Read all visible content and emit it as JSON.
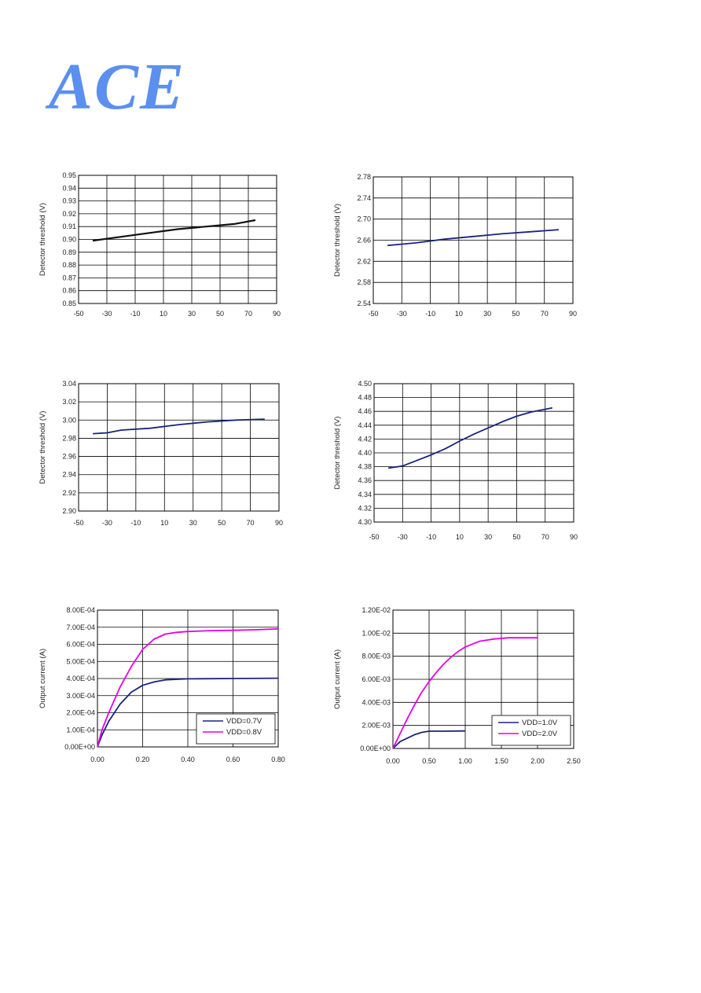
{
  "logo": {
    "text": "ACE"
  },
  "chart_data": [
    {
      "type": "line",
      "ylabel": "Detector threshold (V)",
      "xlabel": "",
      "xlim": [
        -50,
        90
      ],
      "ylim": [
        0.85,
        0.95
      ],
      "xticks": [
        "-50",
        "-30",
        "-10",
        "10",
        "30",
        "50",
        "70",
        "90"
      ],
      "yticks": [
        "0.85",
        "0.86",
        "0.87",
        "0.88",
        "0.89",
        "0.90",
        "0.91",
        "0.92",
        "0.93",
        "0.94",
        "0.95"
      ],
      "grid": true,
      "series": [
        {
          "color": "#111111",
          "x": [
            -40,
            -20,
            0,
            20,
            40,
            60,
            75
          ],
          "y": [
            0.899,
            0.902,
            0.905,
            0.908,
            0.91,
            0.912,
            0.915
          ]
        }
      ]
    },
    {
      "type": "line",
      "ylabel": "Detector threshold (V)",
      "xlabel": "",
      "xlim": [
        -50,
        90
      ],
      "ylim": [
        2.54,
        2.78
      ],
      "xticks": [
        "-50",
        "-30",
        "-10",
        "10",
        "30",
        "50",
        "70",
        "90"
      ],
      "yticks": [
        "2.54",
        "2.58",
        "2.62",
        "2.66",
        "2.70",
        "2.74",
        "2.78"
      ],
      "grid": true,
      "series": [
        {
          "color": "#1a237e",
          "x": [
            -40,
            -20,
            0,
            20,
            40,
            60,
            80
          ],
          "y": [
            2.65,
            2.655,
            2.662,
            2.667,
            2.672,
            2.676,
            2.68
          ]
        }
      ]
    },
    {
      "type": "line",
      "ylabel": "Detector threshold (V)",
      "xlabel": "",
      "xlim": [
        -50,
        90
      ],
      "ylim": [
        2.9,
        3.04
      ],
      "xticks": [
        "-50",
        "-30",
        "-10",
        "10",
        "30",
        "50",
        "70",
        "90"
      ],
      "yticks": [
        "2.90",
        "2.92",
        "2.94",
        "2.96",
        "2.98",
        "3.00",
        "3.02",
        "3.04"
      ],
      "grid": true,
      "series": [
        {
          "color": "#1a237e",
          "x": [
            -40,
            -30,
            -20,
            0,
            20,
            40,
            60,
            80
          ],
          "y": [
            2.985,
            2.986,
            2.989,
            2.991,
            2.995,
            2.998,
            3.0,
            3.001
          ]
        }
      ]
    },
    {
      "type": "line",
      "ylabel": "Detector threshold (V)",
      "xlabel": "",
      "xlim": [
        -50,
        90
      ],
      "ylim": [
        4.3,
        4.5
      ],
      "xticks": [
        "-50",
        "-30",
        "-10",
        "10",
        "30",
        "50",
        "70",
        "90"
      ],
      "yticks": [
        "4.30",
        "4.32",
        "4.34",
        "4.36",
        "4.38",
        "4.40",
        "4.42",
        "4.44",
        "4.46",
        "4.48",
        "4.50"
      ],
      "grid": true,
      "series": [
        {
          "color": "#1a237e",
          "x": [
            -40,
            -30,
            -20,
            -10,
            0,
            10,
            20,
            30,
            40,
            50,
            60,
            75
          ],
          "y": [
            4.378,
            4.381,
            4.389,
            4.397,
            4.406,
            4.417,
            4.427,
            4.436,
            4.445,
            4.453,
            4.459,
            4.465
          ]
        }
      ]
    },
    {
      "type": "line",
      "ylabel": "Output current  (A)",
      "xlabel": "",
      "xlim": [
        0,
        0.8
      ],
      "ylim": [
        0,
        0.0008
      ],
      "xticks": [
        "0.00",
        "0.20",
        "0.40",
        "0.60",
        "0.80"
      ],
      "yticks": [
        "0.00E+00",
        "1.00E-04",
        "2.00E-04",
        "3.00E-04",
        "4.00E-04",
        "5.00E-04",
        "6.00E-04",
        "7.00E-04",
        "8.00E-04"
      ],
      "grid": true,
      "legend_position": "bottom-right",
      "series": [
        {
          "name": "VDD=0.7V",
          "color": "#1a237e",
          "x": [
            0,
            0.02,
            0.05,
            0.1,
            0.15,
            0.2,
            0.25,
            0.3,
            0.4,
            0.6,
            0.8
          ],
          "y": [
            0,
            7e-05,
            0.00015,
            0.00025,
            0.00032,
            0.00036,
            0.00038,
            0.000392,
            0.000398,
            0.0004,
            0.000402
          ]
        },
        {
          "name": "VDD=0.8V",
          "color": "#e600e6",
          "x": [
            0,
            0.02,
            0.05,
            0.1,
            0.15,
            0.2,
            0.25,
            0.3,
            0.35,
            0.4,
            0.5,
            0.6,
            0.7,
            0.8
          ],
          "y": [
            0,
            0.0001,
            0.0002,
            0.00035,
            0.00047,
            0.00057,
            0.00063,
            0.00066,
            0.00067,
            0.000675,
            0.00068,
            0.000682,
            0.000685,
            0.00069
          ]
        }
      ]
    },
    {
      "type": "line",
      "ylabel": "Output current  (A)",
      "xlabel": "",
      "xlim": [
        0,
        2.5
      ],
      "ylim": [
        0,
        0.012
      ],
      "xticks": [
        "0.00",
        "0.50",
        "1.00",
        "1.50",
        "2.00",
        "2.50"
      ],
      "yticks": [
        "0.00E+00",
        "2.00E-03",
        "4.00E-03",
        "6.00E-03",
        "8.00E-03",
        "1.00E-02",
        "1.20E-02"
      ],
      "grid": true,
      "legend_position": "bottom-right",
      "series": [
        {
          "name": "VDD=1.0V",
          "color": "#1a237e",
          "x": [
            0,
            0.05,
            0.1,
            0.2,
            0.3,
            0.4,
            0.5,
            0.7,
            1.0
          ],
          "y": [
            0,
            0.0003,
            0.0006,
            0.0009,
            0.0012,
            0.0014,
            0.0015,
            0.0015,
            0.00152
          ]
        },
        {
          "name": "VDD=2.0V",
          "color": "#e600e6",
          "x": [
            0,
            0.1,
            0.2,
            0.3,
            0.4,
            0.5,
            0.6,
            0.7,
            0.8,
            0.9,
            1.0,
            1.2,
            1.4,
            1.6,
            2.0
          ],
          "y": [
            0,
            0.0013,
            0.0026,
            0.0038,
            0.0049,
            0.0058,
            0.0066,
            0.0073,
            0.0079,
            0.0084,
            0.0088,
            0.0093,
            0.0095,
            0.0096,
            0.0096
          ]
        }
      ]
    }
  ]
}
